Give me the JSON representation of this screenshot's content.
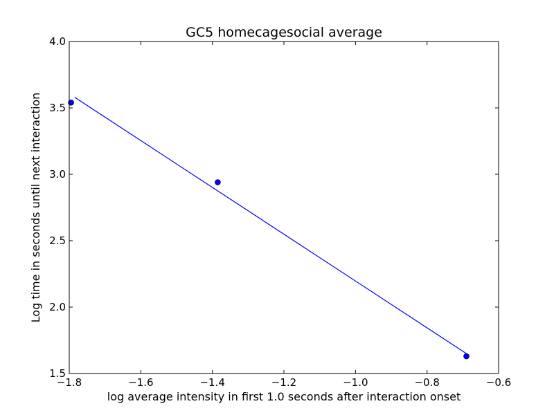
{
  "chart_data": {
    "type": "scatter",
    "title": "GC5 homecagesocial average",
    "xlabel": "log average intensity in first 1.0 seconds after interaction onset",
    "ylabel": "Log time in seconds until next interaction",
    "xlim": [
      -1.8,
      -0.6
    ],
    "ylim": [
      1.5,
      4.0
    ],
    "x_ticks": [
      -1.8,
      -1.6,
      -1.4,
      -1.2,
      -1.0,
      -0.8,
      -0.6
    ],
    "x_tick_labels": [
      "−1.8",
      "−1.6",
      "−1.4",
      "−1.2",
      "−1.0",
      "−0.8",
      "−0.6"
    ],
    "y_ticks": [
      1.5,
      2.0,
      2.5,
      3.0,
      3.5,
      4.0
    ],
    "y_tick_labels": [
      "1.5",
      "2.0",
      "2.5",
      "3.0",
      "3.5",
      "4.0"
    ],
    "grid": false,
    "color": "#0000ff",
    "points": [
      {
        "x": -1.795,
        "y": 3.54
      },
      {
        "x": -1.385,
        "y": 2.94
      },
      {
        "x": -0.69,
        "y": 1.63
      }
    ],
    "fit_line": {
      "x": [
        -1.785,
        -0.69
      ],
      "y": [
        3.58,
        1.65
      ]
    }
  }
}
